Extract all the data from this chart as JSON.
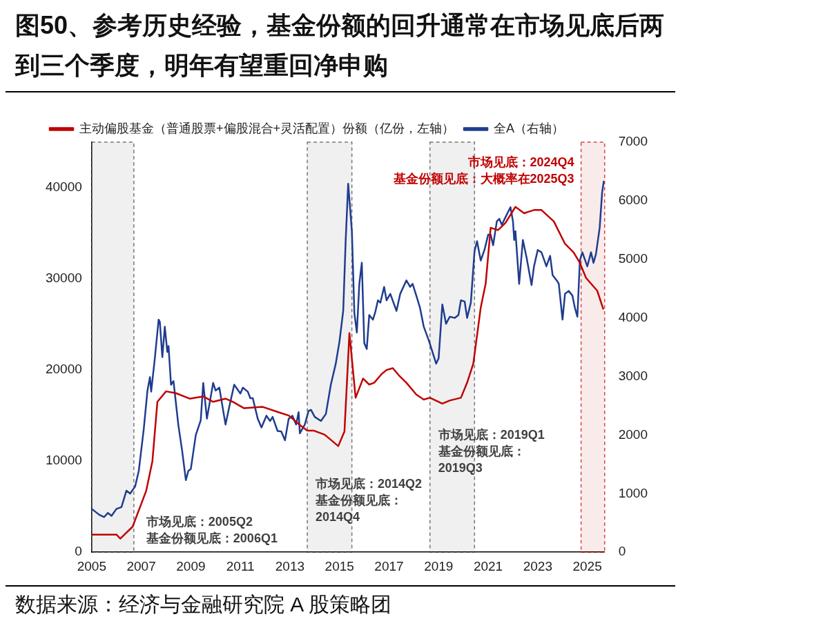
{
  "chart_data": {
    "type": "line",
    "title": "图50、参考历史经验，基金份额的回升通常在市场见底后两到三个季度，明年有望重回净申购",
    "series": [
      {
        "name": "主动偏股基金（普通股票+偏股混合+灵活配置）份额（亿份，左轴）",
        "color": "#c00000",
        "x": [
          2005.0,
          2005.75,
          2006.0,
          2006.15,
          2006.65,
          2007.2,
          2007.45,
          2007.65,
          2008.0,
          2008.4,
          2008.95,
          2009.5,
          2009.9,
          2010.4,
          2010.7,
          2011.15,
          2011.9,
          2012.55,
          2012.95,
          2013.45,
          2013.7,
          2013.95,
          2014.4,
          2014.95,
          2015.2,
          2015.4,
          2015.65,
          2015.95,
          2016.2,
          2016.4,
          2016.7,
          2016.9,
          2017.15,
          2017.4,
          2017.7,
          2018.1,
          2018.4,
          2018.65,
          2019.15,
          2019.45,
          2019.9,
          2020.15,
          2020.4,
          2020.7,
          2020.9,
          2021.1,
          2021.4,
          2021.7,
          2022.1,
          2022.45,
          2022.85,
          2023.15,
          2023.65,
          2024.1,
          2024.45,
          2024.7,
          2024.95,
          2025.4,
          2025.65
        ],
        "values": [
          1930,
          1930,
          1930,
          1490,
          2800,
          6750,
          10000,
          16500,
          17650,
          17450,
          16850,
          17100,
          16500,
          16850,
          16500,
          15800,
          15950,
          15350,
          15000,
          13850,
          13350,
          13350,
          12900,
          11650,
          13250,
          24050,
          16950,
          19050,
          18400,
          18600,
          19550,
          20000,
          20200,
          19400,
          18600,
          17300,
          16750,
          16950,
          16300,
          16650,
          16950,
          18600,
          20700,
          26850,
          29500,
          35600,
          35350,
          36150,
          37900,
          37200,
          37550,
          37550,
          36300,
          33850,
          32900,
          31750,
          30100,
          28700,
          26650
        ]
      },
      {
        "name": "全A（右轴）",
        "color": "#1f3c8f",
        "axis": "y2",
        "x": [
          2005.0,
          2005.3,
          2005.5,
          2005.65,
          2005.8,
          2006.0,
          2006.2,
          2006.4,
          2006.55,
          2006.75,
          2006.9,
          2007.1,
          2007.25,
          2007.35,
          2007.4,
          2007.55,
          2007.7,
          2007.75,
          2007.85,
          2007.95,
          2008.05,
          2008.1,
          2008.2,
          2008.3,
          2008.5,
          2008.65,
          2008.8,
          2008.9,
          2009.0,
          2009.2,
          2009.4,
          2009.5,
          2009.65,
          2009.9,
          2010.0,
          2010.15,
          2010.4,
          2010.55,
          2010.75,
          2011.0,
          2011.1,
          2011.3,
          2011.4,
          2011.5,
          2011.7,
          2011.85,
          2012.05,
          2012.2,
          2012.3,
          2012.5,
          2012.65,
          2012.8,
          2012.95,
          2013.1,
          2013.25,
          2013.35,
          2013.4,
          2013.6,
          2013.75,
          2013.85,
          2014.0,
          2014.25,
          2014.45,
          2014.65,
          2014.85,
          2015.0,
          2015.15,
          2015.25,
          2015.35,
          2015.5,
          2015.6,
          2015.7,
          2015.8,
          2015.9,
          2016.0,
          2016.1,
          2016.2,
          2016.35,
          2016.45,
          2016.55,
          2016.65,
          2016.8,
          2016.9,
          2017.05,
          2017.3,
          2017.45,
          2017.7,
          2017.85,
          2017.95,
          2018.1,
          2018.25,
          2018.4,
          2018.6,
          2018.75,
          2018.9,
          2019.0,
          2019.15,
          2019.3,
          2019.45,
          2019.65,
          2019.8,
          2019.9,
          2020.05,
          2020.15,
          2020.3,
          2020.45,
          2020.55,
          2020.7,
          2020.85,
          2021.0,
          2021.1,
          2021.2,
          2021.35,
          2021.45,
          2021.55,
          2021.7,
          2021.9,
          2022.0,
          2022.05,
          2022.1,
          2022.25,
          2022.4,
          2022.55,
          2022.75,
          2022.85,
          2023.0,
          2023.15,
          2023.35,
          2023.5,
          2023.6,
          2023.8,
          2023.85,
          2024.0,
          2024.1,
          2024.25,
          2024.4,
          2024.5,
          2024.6,
          2024.7,
          2024.8,
          2025.0,
          2025.15,
          2025.25,
          2025.35,
          2025.5,
          2025.6,
          2025.67
        ],
        "values": [
          740,
          640,
          600,
          670,
          620,
          740,
          770,
          1050,
          1000,
          1120,
          1390,
          2100,
          2760,
          2990,
          2740,
          3320,
          3970,
          3930,
          3330,
          3850,
          3420,
          3520,
          2860,
          2920,
          2160,
          1730,
          1230,
          1390,
          1420,
          2000,
          2250,
          2890,
          2280,
          2890,
          2760,
          2810,
          2180,
          2480,
          2860,
          2710,
          2810,
          2740,
          2630,
          2630,
          2280,
          2130,
          2330,
          2240,
          2310,
          2070,
          2060,
          1910,
          2280,
          2330,
          2180,
          2390,
          2030,
          2180,
          2410,
          2430,
          2310,
          2240,
          2360,
          2860,
          3220,
          3600,
          4120,
          5330,
          6290,
          5480,
          4080,
          3750,
          4580,
          4940,
          3570,
          3470,
          4050,
          3970,
          4110,
          4300,
          4260,
          4530,
          4300,
          4410,
          4120,
          4410,
          4640,
          4530,
          4580,
          4380,
          4170,
          3850,
          3620,
          3420,
          3220,
          3310,
          4230,
          3900,
          4020,
          4000,
          4050,
          4300,
          4280,
          4000,
          4260,
          5140,
          5310,
          4980,
          5160,
          5420,
          5420,
          5240,
          5650,
          5690,
          5590,
          5720,
          5890,
          5650,
          5330,
          5480,
          4580,
          5330,
          5030,
          4560,
          4880,
          5160,
          5120,
          4880,
          5060,
          4730,
          4620,
          4580,
          3970,
          4410,
          4460,
          4380,
          4170,
          4020,
          4980,
          5120,
          4880,
          5120,
          4940,
          5090,
          5540,
          6150,
          6340
        ]
      }
    ],
    "xlim": [
      2005,
      2025.7
    ],
    "xticks": [
      2005,
      2007,
      2009,
      2011,
      2013,
      2015,
      2017,
      2019,
      2021,
      2023,
      2025
    ],
    "ylim": [
      0,
      45000
    ],
    "yticks": [
      0,
      10000,
      20000,
      30000,
      40000
    ],
    "y2lim": [
      0,
      7000
    ],
    "y2ticks": [
      0,
      1000,
      2000,
      3000,
      4000,
      5000,
      6000,
      7000
    ],
    "grid": false,
    "legend": "top left",
    "bands": [
      {
        "axis": "x",
        "from": 2005.0,
        "to": 2006.7,
        "color": "#404040",
        "label": "市场见底：2005Q2\n基金份额见底：2006Q1"
      },
      {
        "axis": "x",
        "from": 2013.7,
        "to": 2015.5,
        "color": "#404040",
        "label": "市场见底：2014Q2\n基金份额见底：\n2014Q4"
      },
      {
        "axis": "x",
        "from": 2018.65,
        "to": 2020.45,
        "color": "#404040",
        "label": "市场见底：2019Q1\n基金份额见底：\n2019Q3"
      },
      {
        "axis": "x",
        "from": 2024.75,
        "to": 2025.7,
        "color": "#c00000",
        "label": "市场见底：2024Q4\n基金份额见底：大概率在2025Q3"
      }
    ],
    "annotations": [
      "数据来源：经济与金融研究院 A 股策略团"
    ]
  }
}
